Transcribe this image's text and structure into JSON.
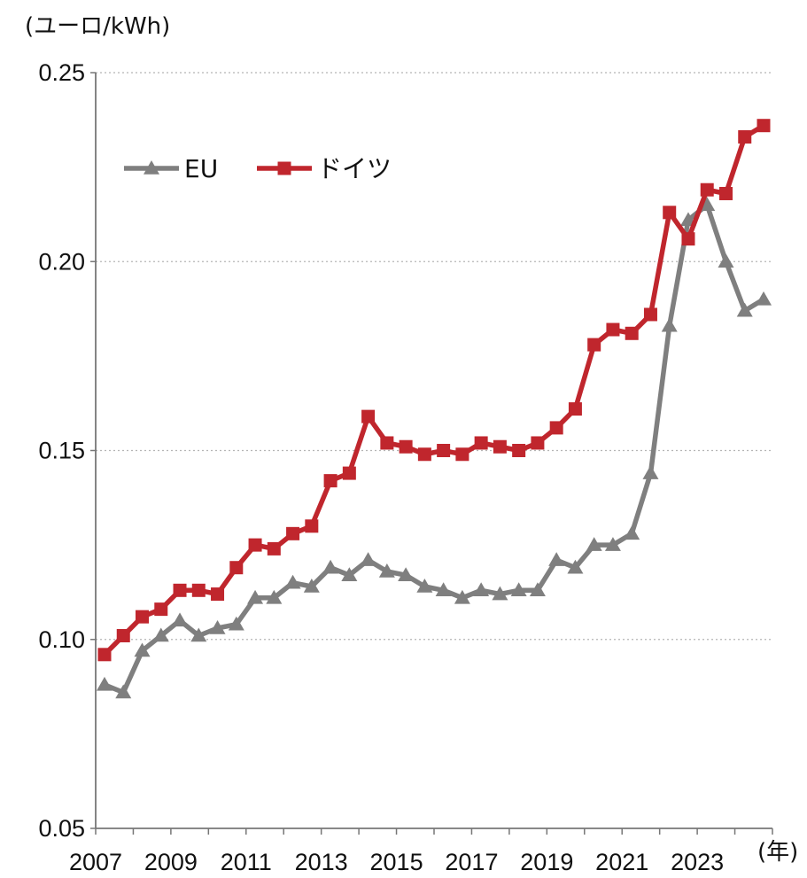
{
  "chart_data": {
    "type": "line",
    "ylabel": "(ユーロ/kWh)",
    "xlabel": "(年)",
    "ylim": [
      0.05,
      0.25
    ],
    "yticks": [
      "0.05",
      "0.10",
      "0.15",
      "0.20",
      "0.25"
    ],
    "xticks": [
      "2007",
      "2009",
      "2011",
      "2013",
      "2015",
      "2017",
      "2019",
      "2021",
      "2023"
    ],
    "x": [
      "2007S1",
      "2007S2",
      "2008S1",
      "2008S2",
      "2009S1",
      "2009S2",
      "2010S1",
      "2010S2",
      "2011S1",
      "2011S2",
      "2012S1",
      "2012S2",
      "2013S1",
      "2013S2",
      "2014S1",
      "2014S2",
      "2015S1",
      "2015S2",
      "2016S1",
      "2016S2",
      "2017S1",
      "2017S2",
      "2018S1",
      "2018S2",
      "2019S1",
      "2019S2",
      "2020S1",
      "2020S2",
      "2021S1",
      "2021S2",
      "2022S1",
      "2022S2",
      "2023S1",
      "2023S2",
      "2024S1",
      "2024S2"
    ],
    "grid": true,
    "legend_position": "top-left",
    "series": [
      {
        "name": "EU",
        "color": "#7f7f7f",
        "marker": "triangle",
        "values": [
          0.088,
          0.086,
          0.097,
          0.101,
          0.105,
          0.101,
          0.103,
          0.104,
          0.111,
          0.111,
          0.115,
          0.114,
          0.119,
          0.117,
          0.121,
          0.118,
          0.117,
          0.114,
          0.113,
          0.111,
          0.113,
          0.112,
          0.113,
          0.113,
          0.121,
          0.119,
          0.125,
          0.125,
          0.128,
          0.144,
          0.183,
          0.211,
          0.215,
          0.2,
          0.187,
          0.19
        ]
      },
      {
        "name": "ドイツ",
        "color": "#c0262d",
        "marker": "square",
        "values": [
          0.096,
          0.101,
          0.106,
          0.108,
          0.113,
          0.113,
          0.112,
          0.119,
          0.125,
          0.124,
          0.128,
          0.13,
          0.142,
          0.144,
          0.159,
          0.152,
          0.151,
          0.149,
          0.15,
          0.149,
          0.152,
          0.151,
          0.15,
          0.152,
          0.156,
          0.161,
          0.178,
          0.182,
          0.181,
          0.186,
          0.213,
          0.206,
          0.219,
          0.218,
          0.233,
          0.236
        ]
      }
    ]
  }
}
